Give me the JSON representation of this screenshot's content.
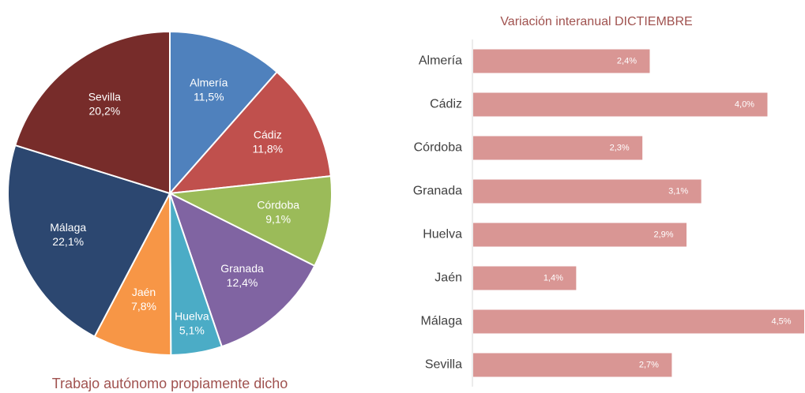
{
  "chart_data": [
    {
      "type": "pie",
      "title": "Trabajo autónomo propiamente dicho",
      "categories": [
        "Almería",
        "Cádiz",
        "Córdoba",
        "Granada",
        "Huelva",
        "Jaén",
        "Málaga",
        "Sevilla"
      ],
      "values": [
        11.5,
        11.8,
        9.1,
        12.4,
        5.1,
        7.8,
        22.1,
        20.2
      ],
      "value_labels": [
        "11,5%",
        "11,8%",
        "9,1%",
        "12,4%",
        "5,1%",
        "7,8%",
        "22,1%",
        "20,2%"
      ],
      "colors": [
        "#4f81bd",
        "#c0504d",
        "#9bbb59",
        "#8064a2",
        "#4bacc6",
        "#f79646",
        "#2c4770",
        "#772c2a"
      ]
    },
    {
      "type": "hbar",
      "title": "Variación interanual DICTIEMBRE",
      "categories": [
        "Almería",
        "Cádiz",
        "Córdoba",
        "Granada",
        "Huelva",
        "Jaén",
        "Málaga",
        "Sevilla"
      ],
      "values": [
        2.4,
        4.0,
        2.3,
        3.1,
        2.9,
        1.4,
        4.5,
        2.7
      ],
      "value_labels": [
        "2,4%",
        "4,0%",
        "2,3%",
        "3,1%",
        "2,9%",
        "1,4%",
        "4,5%",
        "2,7%"
      ],
      "color": "#d99694"
    }
  ]
}
